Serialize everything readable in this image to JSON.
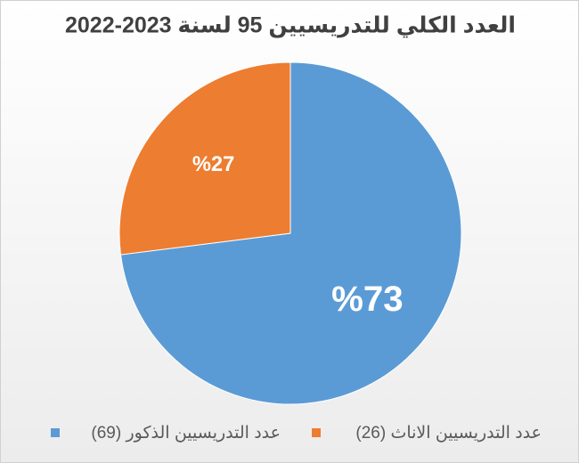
{
  "chart_data": {
    "type": "pie",
    "title": "العدد الكلي للتدريسيين 95 لسنة 2023-2022",
    "categories": [
      "عدد التدريسيين الذكور (69)",
      "عدد التدريسيين الاناث (26)"
    ],
    "values": [
      73,
      27
    ],
    "value_labels": [
      "%73",
      "%27"
    ],
    "colors": [
      "#5b9bd5",
      "#ed7d31"
    ],
    "legend": "bottom"
  }
}
